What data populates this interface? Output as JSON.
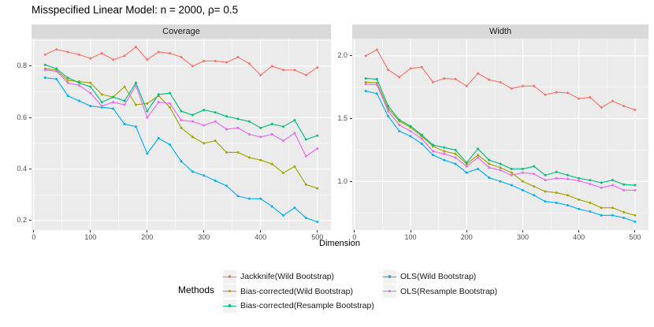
{
  "title": "Misspecified Linear Model: n = 2000, ρ= 0.5",
  "x_axis_title": "Dimension",
  "legend": {
    "title": "Methods",
    "columns": [
      [
        {
          "label": "Jackknife(Wild Bootstrap)",
          "color": "#F8766D"
        },
        {
          "label": "Bias-corrected(Wild Bootstrap)",
          "color": "#A3A500"
        },
        {
          "label": "Bias-corrected(Resample Bootstrap)",
          "color": "#00BF7D"
        }
      ],
      [
        {
          "label": "OLS(Wild Bootstrap)",
          "color": "#00B0F6"
        },
        {
          "label": "OLS(Resample Bootstrap)",
          "color": "#E76BF3"
        }
      ]
    ]
  },
  "style": {
    "panel_bg": "#EBEBEB",
    "strip_bg": "#D9D9D9",
    "grid_major": "#FFFFFF",
    "grid_minor": "#F7F7F7",
    "axis_text": "#4D4D4D"
  },
  "chart_data": [
    {
      "type": "line",
      "title": "Coverage",
      "xlabel": "Dimension",
      "ylabel": "",
      "x": [
        20,
        40,
        60,
        80,
        100,
        120,
        140,
        160,
        180,
        200,
        220,
        240,
        260,
        280,
        300,
        320,
        340,
        360,
        380,
        400,
        420,
        440,
        460,
        480,
        500
      ],
      "xlim": [
        -4,
        524
      ],
      "xticks": [
        0,
        100,
        200,
        300,
        400,
        500
      ],
      "xticks_minor": [
        50,
        150,
        250,
        350,
        450
      ],
      "ylim": [
        0.163,
        0.907
      ],
      "yticks": [
        0.2,
        0.4,
        0.6,
        0.8
      ],
      "yticks_minor": [
        0.3,
        0.5,
        0.7,
        0.9
      ],
      "grid": true,
      "legend_position": "bottom",
      "series": [
        {
          "name": "Jackknife(Wild Bootstrap)",
          "color": "#F8766D",
          "values": [
            0.845,
            0.865,
            0.855,
            0.845,
            0.83,
            0.85,
            0.825,
            0.84,
            0.875,
            0.825,
            0.855,
            0.85,
            0.835,
            0.8,
            0.82,
            0.82,
            0.815,
            0.835,
            0.81,
            0.765,
            0.8,
            0.785,
            0.785,
            0.765,
            0.795
          ]
        },
        {
          "name": "Bias-corrected(Wild Bootstrap)",
          "color": "#A3A500",
          "values": [
            0.79,
            0.785,
            0.745,
            0.74,
            0.735,
            0.69,
            0.68,
            0.72,
            0.65,
            0.655,
            0.685,
            0.64,
            0.56,
            0.525,
            0.5,
            0.51,
            0.465,
            0.465,
            0.445,
            0.435,
            0.42,
            0.385,
            0.41,
            0.34,
            0.325
          ]
        },
        {
          "name": "Bias-corrected(Resample Bootstrap)",
          "color": "#00BF7D",
          "values": [
            0.805,
            0.79,
            0.755,
            0.735,
            0.72,
            0.66,
            0.68,
            0.665,
            0.735,
            0.625,
            0.69,
            0.695,
            0.625,
            0.61,
            0.63,
            0.62,
            0.605,
            0.595,
            0.585,
            0.56,
            0.575,
            0.565,
            0.59,
            0.515,
            0.53
          ]
        },
        {
          "name": "OLS(Wild Bootstrap)",
          "color": "#00B0F6",
          "values": [
            0.755,
            0.75,
            0.685,
            0.665,
            0.645,
            0.64,
            0.635,
            0.575,
            0.565,
            0.46,
            0.52,
            0.495,
            0.43,
            0.39,
            0.375,
            0.355,
            0.335,
            0.295,
            0.285,
            0.285,
            0.255,
            0.22,
            0.25,
            0.21,
            0.195
          ]
        },
        {
          "name": "OLS(Resample Bootstrap)",
          "color": "#E76BF3",
          "values": [
            0.785,
            0.78,
            0.735,
            0.725,
            0.695,
            0.645,
            0.66,
            0.65,
            0.725,
            0.6,
            0.66,
            0.655,
            0.59,
            0.585,
            0.57,
            0.585,
            0.555,
            0.56,
            0.535,
            0.525,
            0.535,
            0.51,
            0.54,
            0.45,
            0.48
          ]
        }
      ]
    },
    {
      "type": "line",
      "title": "Width",
      "xlabel": "Dimension",
      "ylabel": "",
      "x": [
        20,
        40,
        60,
        80,
        100,
        120,
        140,
        160,
        180,
        200,
        220,
        240,
        260,
        280,
        300,
        320,
        340,
        360,
        380,
        400,
        420,
        440,
        460,
        480,
        500
      ],
      "xlim": [
        -4,
        524
      ],
      "xticks": [
        0,
        100,
        200,
        300,
        400,
        500
      ],
      "xticks_minor": [
        50,
        150,
        250,
        350,
        450
      ],
      "ylim": [
        0.6125,
        2.1375
      ],
      "yticks": [
        1.0,
        1.5,
        2.0
      ],
      "yticks_minor": [
        0.75,
        1.25,
        1.75
      ],
      "grid": true,
      "legend_position": "bottom",
      "series": [
        {
          "name": "Jackknife(Wild Bootstrap)",
          "color": "#F8766D",
          "values": [
            2.0,
            2.05,
            1.89,
            1.83,
            1.9,
            1.91,
            1.79,
            1.82,
            1.815,
            1.76,
            1.86,
            1.81,
            1.79,
            1.74,
            1.76,
            1.76,
            1.69,
            1.71,
            1.705,
            1.66,
            1.67,
            1.59,
            1.64,
            1.6,
            1.57
          ]
        },
        {
          "name": "Bias-corrected(Wild Bootstrap)",
          "color": "#A3A500",
          "values": [
            1.79,
            1.785,
            1.58,
            1.48,
            1.43,
            1.36,
            1.28,
            1.24,
            1.22,
            1.14,
            1.21,
            1.14,
            1.11,
            1.07,
            1.0,
            0.96,
            0.92,
            0.91,
            0.89,
            0.855,
            0.83,
            0.79,
            0.79,
            0.755,
            0.73
          ]
        },
        {
          "name": "Bias-corrected(Resample Bootstrap)",
          "color": "#00BF7D",
          "values": [
            1.82,
            1.815,
            1.6,
            1.49,
            1.44,
            1.37,
            1.29,
            1.27,
            1.25,
            1.15,
            1.26,
            1.17,
            1.14,
            1.1,
            1.1,
            1.12,
            1.05,
            1.075,
            1.05,
            1.025,
            1.01,
            0.99,
            1.01,
            0.975,
            0.97
          ]
        },
        {
          "name": "OLS(Wild Bootstrap)",
          "color": "#00B0F6",
          "values": [
            1.72,
            1.7,
            1.52,
            1.4,
            1.36,
            1.3,
            1.21,
            1.17,
            1.14,
            1.07,
            1.1,
            1.03,
            1.0,
            0.97,
            0.93,
            0.89,
            0.84,
            0.83,
            0.81,
            0.78,
            0.76,
            0.73,
            0.73,
            0.71,
            0.68
          ]
        },
        {
          "name": "OLS(Resample Bootstrap)",
          "color": "#E76BF3",
          "values": [
            1.775,
            1.77,
            1.56,
            1.45,
            1.4,
            1.34,
            1.24,
            1.22,
            1.19,
            1.12,
            1.19,
            1.11,
            1.09,
            1.05,
            1.07,
            1.06,
            1.01,
            1.025,
            1.02,
            1.005,
            0.98,
            0.95,
            0.97,
            0.93,
            0.93
          ]
        }
      ]
    }
  ]
}
